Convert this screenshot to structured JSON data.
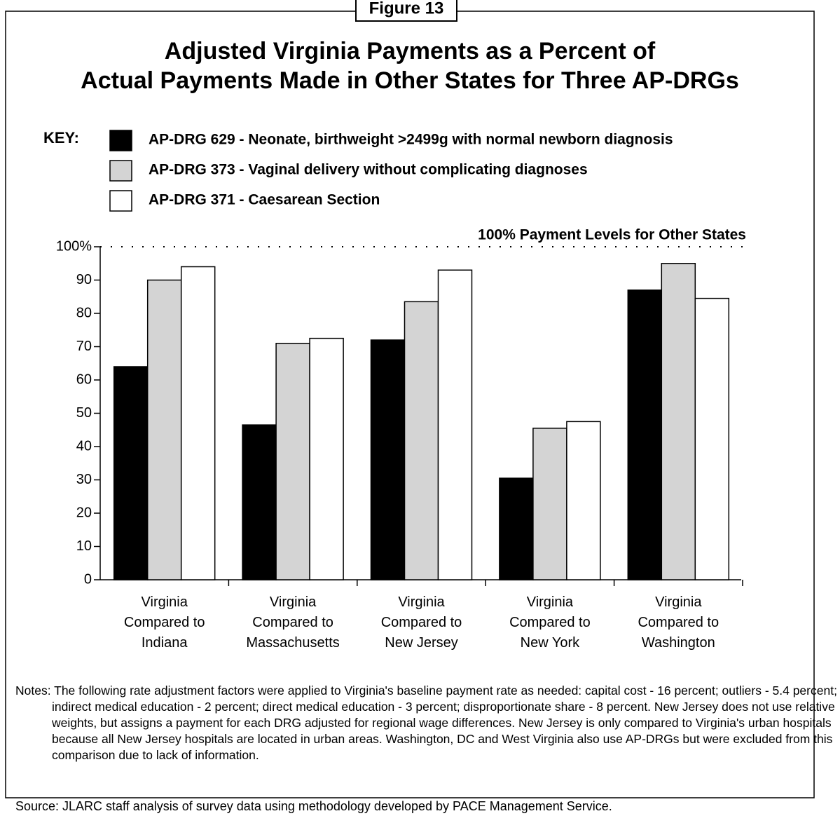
{
  "chart_data": {
    "type": "bar",
    "figure_label": "Figure 13",
    "title": "Adjusted Virginia Payments as a Percent of\nActual Payments Made in Other States for Three AP-DRGs",
    "legend_title": "KEY:",
    "categories": [
      "Virginia\nCompared to\nIndiana",
      "Virginia\nCompared to\nMassachusetts",
      "Virginia\nCompared to\nNew Jersey",
      "Virginia\nCompared to\nNew York",
      "Virginia\nCompared to\nWashington"
    ],
    "series": [
      {
        "name": "AP-DRG 629 - Neonate, birthweight >2499g with normal newborn diagnosis",
        "color": "#000000",
        "values": [
          64,
          46.5,
          72,
          30.5,
          87
        ]
      },
      {
        "name": "AP-DRG 373 - Vaginal delivery without complicating diagnoses",
        "color": "#d4d4d4",
        "values": [
          90,
          71,
          83.5,
          45.5,
          95
        ]
      },
      {
        "name": "AP-DRG 371 - Caesarean Section",
        "color": "#ffffff",
        "values": [
          94,
          72.5,
          93,
          47.5,
          84.5
        ]
      }
    ],
    "ylim": [
      0,
      100
    ],
    "yticks": [
      0,
      10,
      20,
      30,
      40,
      50,
      60,
      70,
      80,
      90,
      {
        "value": 100,
        "label": "100%"
      }
    ],
    "reference_line": 100,
    "annotation": "100% Payment Levels for Other States",
    "notes": "Notes: The following rate adjustment factors were applied to Virginia's baseline payment rate as needed: capital cost - 16 percent; outliers - 5.4 percent; indirect medical education - 2 percent; direct medical education - 3 percent; disproportionate share - 8 percent.  New Jersey does not use relative weights, but assigns a payment for each DRG adjusted for regional wage differences.  New Jersey is only compared to Virginia's urban hospitals because all New Jersey hospitals are located in urban areas. Washington, DC and West Virginia also use AP-DRGs but were excluded from this comparison due to lack of information.",
    "source": "Source: JLARC staff analysis of survey data using methodology developed by PACE Management Service."
  }
}
